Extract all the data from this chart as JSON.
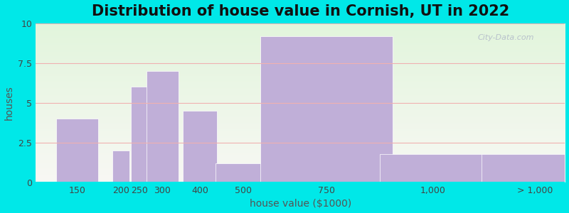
{
  "title": "Distribution of house value in Cornish, UT in 2022",
  "xlabel": "house value ($1000)",
  "ylabel": "houses",
  "bar_labels": [
    "150",
    "200",
    "250",
    "300",
    "400",
    "500",
    "750",
    "1,000",
    "> 1,000"
  ],
  "bar_heights": [
    4.0,
    2.0,
    6.0,
    7.0,
    4.5,
    1.2,
    9.2,
    1.8,
    1.8
  ],
  "bar_color": "#c0afd8",
  "bar_edgecolor": "#ffffff",
  "ylim": [
    0,
    10
  ],
  "yticks": [
    0,
    2.5,
    5,
    7.5,
    10
  ],
  "ytick_labels": [
    "0",
    "2.5",
    "5",
    "7.5",
    "10"
  ],
  "background_color": "#00e8e8",
  "plot_bg_top_color": "#e2f5dc",
  "plot_bg_bottom_color": "#f8f8f4",
  "grid_color": "#f0b0b0",
  "title_fontsize": 15,
  "axis_label_fontsize": 10,
  "tick_fontsize": 9,
  "watermark_text": "City-Data.com"
}
